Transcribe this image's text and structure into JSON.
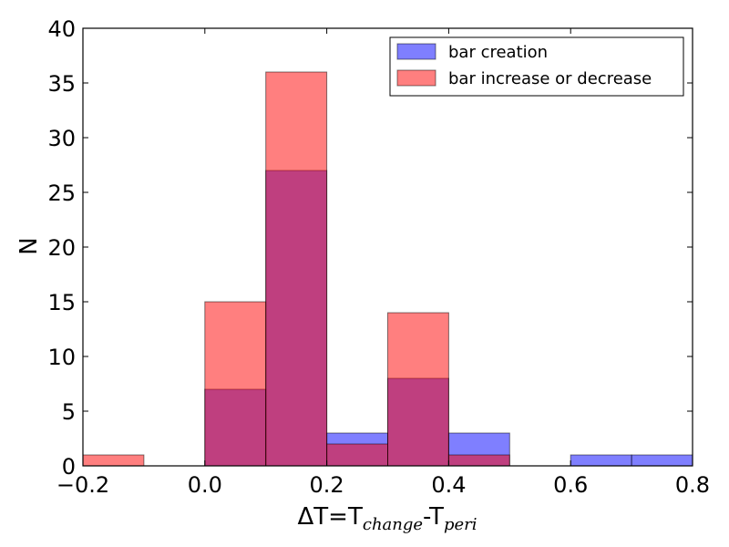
{
  "chart_data": {
    "type": "bar",
    "title": "",
    "xlabel": {
      "delta": "ΔT=T",
      "sub1": "change",
      "dash": "-T",
      "sub2": "peri"
    },
    "ylabel": "N",
    "xlim": [
      -0.2,
      0.8
    ],
    "ylim": [
      0,
      40
    ],
    "xticks": [
      -0.2,
      0.0,
      0.2,
      0.4,
      0.6,
      0.8
    ],
    "xtick_labels": [
      "−0.2",
      "0.0",
      "0.2",
      "0.4",
      "0.6",
      "0.8"
    ],
    "yticks": [
      0,
      5,
      10,
      15,
      20,
      25,
      30,
      35,
      40
    ],
    "ytick_labels": [
      "0",
      "5",
      "10",
      "15",
      "20",
      "25",
      "30",
      "35",
      "40"
    ],
    "bin_edges": [
      -0.2,
      -0.1,
      0.0,
      0.1,
      0.2,
      0.3,
      0.4,
      0.5,
      0.6,
      0.7,
      0.8
    ],
    "series": [
      {
        "name": "bar creation",
        "color": "#0000ff",
        "alpha": 0.5,
        "counts": [
          0,
          0,
          7,
          27,
          3,
          8,
          3,
          0,
          1,
          1
        ]
      },
      {
        "name": "bar increase or decrease",
        "color": "#ff0000",
        "alpha": 0.5,
        "counts": [
          1,
          0,
          15,
          36,
          2,
          14,
          1,
          0,
          0,
          0
        ]
      }
    ],
    "legend_position": "top-right"
  }
}
